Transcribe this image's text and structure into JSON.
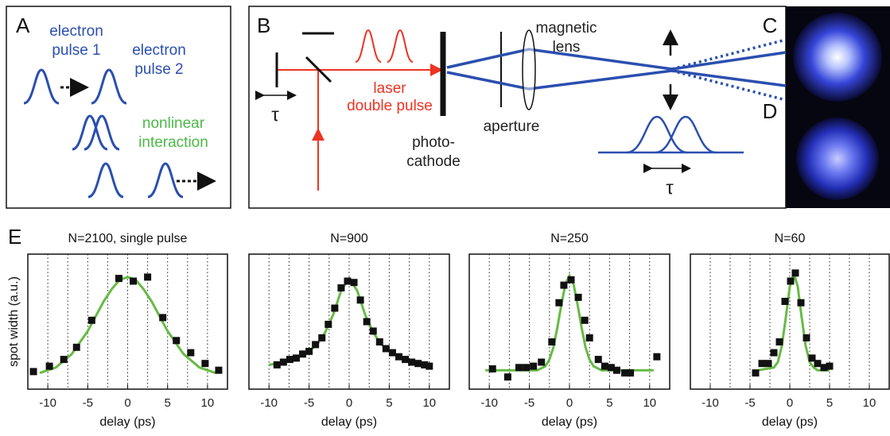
{
  "panels": {
    "A": {
      "label": "A",
      "pulse1": [
        "electron",
        "pulse 1"
      ],
      "pulse2": [
        "electron",
        "pulse 2"
      ],
      "interaction": [
        "nonlinear",
        "interaction"
      ]
    },
    "B": {
      "label": "B",
      "tau": [
        "τ",
        "τ"
      ],
      "laser": [
        "laser",
        "double pulse"
      ],
      "cathode": [
        "photo-",
        "cathode"
      ],
      "aperture": "aperture",
      "lens": [
        "magnetic",
        "lens"
      ]
    },
    "C": {
      "label": "C"
    },
    "D": {
      "label": "D"
    },
    "E": {
      "label": "E"
    }
  },
  "chart_data": [
    {
      "type": "scatter",
      "title": "N=2100, single pulse",
      "xlabel": "delay (ps)",
      "ylabel": "spot width (a.u.)",
      "xlim": [
        -12.5,
        12.5
      ],
      "ylim": [
        0,
        1
      ],
      "xticks": [
        -10,
        -5,
        0,
        5,
        10
      ],
      "grid": true,
      "xgrid": [
        -10,
        -7.5,
        -5,
        -2.5,
        0,
        2.5,
        5,
        7.5,
        10
      ],
      "series": [
        {
          "color": "#111111",
          "marker": "square",
          "x": [
            -11.8,
            -9.8,
            -8,
            -6.4,
            -4.5,
            -1.1,
            0.7,
            2.5,
            4.4,
            6.1,
            7.9,
            9.7,
            11.4
          ],
          "values": [
            0.13,
            0.17,
            0.22,
            0.31,
            0.51,
            0.82,
            0.8,
            0.83,
            0.53,
            0.36,
            0.27,
            0.19,
            0.14
          ]
        },
        {
          "color": "#66bb44",
          "marker": "line",
          "x": [
            -11,
            -9,
            -7,
            -5,
            -4,
            -3,
            -2,
            -1,
            0,
            1,
            2,
            3,
            4,
            5,
            7,
            9,
            11
          ],
          "values": [
            0.12,
            0.16,
            0.26,
            0.43,
            0.54,
            0.65,
            0.74,
            0.81,
            0.83,
            0.81,
            0.74,
            0.65,
            0.54,
            0.43,
            0.26,
            0.16,
            0.12
          ]
        }
      ]
    },
    {
      "type": "scatter",
      "title": "N=900",
      "xlabel": "delay (ps)",
      "xlim": [
        -12.5,
        12.5
      ],
      "ylim": [
        0,
        1
      ],
      "xticks": [
        -10,
        -5,
        0,
        5,
        10
      ],
      "grid": true,
      "xgrid": [
        -10,
        -7.5,
        -5,
        -2.5,
        0,
        2.5,
        5,
        7.5,
        10
      ],
      "series": [
        {
          "color": "#111111",
          "marker": "square",
          "x": [
            -9,
            -8.2,
            -7.4,
            -6.6,
            -5.8,
            -5,
            -4.2,
            -3.4,
            -2.6,
            -1.8,
            -1,
            -0.2,
            0.6,
            1.4,
            2.2,
            3,
            3.8,
            4.6,
            5.4,
            6.2,
            7,
            7.8,
            8.6,
            9.4,
            10
          ],
          "values": [
            0.18,
            0.2,
            0.22,
            0.23,
            0.26,
            0.28,
            0.33,
            0.38,
            0.48,
            0.6,
            0.75,
            0.8,
            0.79,
            0.66,
            0.5,
            0.43,
            0.35,
            0.3,
            0.27,
            0.24,
            0.22,
            0.2,
            0.19,
            0.18,
            0.17
          ]
        },
        {
          "color": "#66bb44",
          "marker": "line",
          "x": [
            -10,
            -9,
            -7,
            -5,
            -4,
            -3,
            -2,
            -1,
            0,
            1,
            2,
            3,
            4,
            5,
            7,
            9,
            10
          ],
          "values": [
            0.18,
            0.19,
            0.22,
            0.28,
            0.33,
            0.42,
            0.55,
            0.73,
            0.82,
            0.73,
            0.55,
            0.42,
            0.33,
            0.28,
            0.22,
            0.19,
            0.18
          ]
        }
      ]
    },
    {
      "type": "scatter",
      "title": "N=250",
      "xlabel": "delay (ps)",
      "xlim": [
        -12.5,
        12.5
      ],
      "ylim": [
        0,
        1
      ],
      "xticks": [
        -10,
        -5,
        0,
        5,
        10
      ],
      "grid": true,
      "xgrid": [
        -10,
        -7.5,
        -5,
        -2.5,
        0,
        2.5,
        5,
        7.5,
        10
      ],
      "series": [
        {
          "color": "#111111",
          "marker": "square",
          "x": [
            -9.6,
            -7.7,
            -6.3,
            -5.4,
            -4.5,
            -3.5,
            -2.2,
            -1.3,
            -0.7,
            0.2,
            1.1,
            1.9,
            2.5,
            3.6,
            4.4,
            5.2,
            5.9,
            6.9,
            7.6,
            10.9
          ],
          "values": [
            0.15,
            0.09,
            0.16,
            0.16,
            0.17,
            0.2,
            0.35,
            0.64,
            0.77,
            0.81,
            0.68,
            0.51,
            0.38,
            0.22,
            0.17,
            0.16,
            0.14,
            0.12,
            0.12,
            0.24
          ]
        },
        {
          "color": "#66bb44",
          "marker": "line",
          "x": [
            -10.5,
            -4,
            -3,
            -2.5,
            -2,
            -1.5,
            -1,
            -0.5,
            0,
            0.5,
            1,
            1.5,
            2,
            2.5,
            3,
            4,
            10.5
          ],
          "values": [
            0.14,
            0.14,
            0.17,
            0.22,
            0.31,
            0.46,
            0.63,
            0.78,
            0.84,
            0.78,
            0.63,
            0.46,
            0.31,
            0.22,
            0.17,
            0.14,
            0.14
          ]
        }
      ]
    },
    {
      "type": "scatter",
      "title": "N=60",
      "xlabel": "delay (ps)",
      "xlim": [
        -12.5,
        12.5
      ],
      "ylim": [
        0,
        1
      ],
      "xticks": [
        -10,
        -5,
        0,
        5,
        10
      ],
      "grid": true,
      "xgrid": [
        -10,
        -7.5,
        -5,
        -2.5,
        0,
        2.5,
        5,
        7.5,
        10
      ],
      "series": [
        {
          "color": "#111111",
          "marker": "square",
          "x": [
            -4.3,
            -3.5,
            -2.7,
            -2,
            -1.3,
            -0.6,
            0.1,
            0.7,
            1.4,
            2.1,
            2.8,
            3.5,
            4.3,
            5
          ],
          "values": [
            0.12,
            0.19,
            0.19,
            0.27,
            0.35,
            0.65,
            0.8,
            0.86,
            0.64,
            0.38,
            0.23,
            0.19,
            0.16,
            0.17
          ]
        },
        {
          "color": "#66bb44",
          "marker": "line",
          "x": [
            -4,
            -2,
            -1.5,
            -1,
            -0.5,
            0,
            0.5,
            1,
            1.5,
            2,
            2.5,
            3,
            3.5,
            5
          ],
          "values": [
            0.14,
            0.16,
            0.2,
            0.32,
            0.53,
            0.76,
            0.86,
            0.76,
            0.53,
            0.32,
            0.2,
            0.16,
            0.14,
            0.14
          ]
        }
      ]
    }
  ]
}
